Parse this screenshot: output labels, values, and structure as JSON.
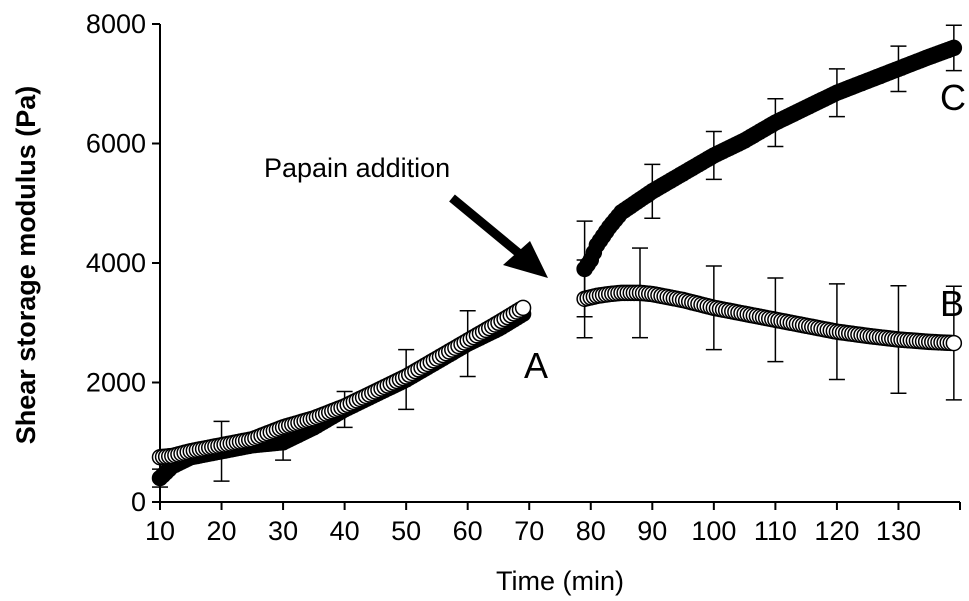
{
  "chart_data": {
    "type": "scatter",
    "title": "",
    "xlabel": "Time (min)",
    "ylabel": "Shear storage modulus  (Pa)",
    "xlim": [
      10,
      140
    ],
    "ylim": [
      0,
      8000
    ],
    "x_ticks": [
      10,
      20,
      30,
      40,
      50,
      60,
      70,
      80,
      90,
      100,
      110,
      120,
      130
    ],
    "y_ticks": [
      0,
      2000,
      4000,
      6000,
      8000
    ],
    "grid": false,
    "legend": "none",
    "series": [
      {
        "label": "A",
        "marker": "filled",
        "color": "#000000",
        "x": [
          10,
          12,
          15,
          20,
          25,
          30,
          35,
          40,
          45,
          50,
          55,
          60,
          65,
          69
        ],
        "y": [
          400,
          600,
          750,
          850,
          950,
          1000,
          1250,
          1550,
          1800,
          2050,
          2350,
          2650,
          2900,
          3150
        ],
        "err": [
          150,
          null,
          null,
          500,
          null,
          300,
          null,
          300,
          null,
          500,
          null,
          550,
          null,
          null
        ]
      },
      {
        "label": "A",
        "marker": "open",
        "color": "#000000",
        "x": [
          10,
          12,
          15,
          20,
          25,
          30,
          35,
          40,
          45,
          50,
          55,
          60,
          65,
          69
        ],
        "y": [
          750,
          770,
          850,
          950,
          1050,
          1250,
          1400,
          1600,
          1850,
          2100,
          2400,
          2700,
          3000,
          3250
        ],
        "err": [
          null,
          null,
          null,
          null,
          null,
          null,
          null,
          null,
          null,
          null,
          null,
          null,
          null,
          null
        ]
      },
      {
        "label": "C",
        "marker": "filled",
        "color": "#000000",
        "x": [
          79,
          80,
          81,
          83,
          85,
          90,
          95,
          100,
          105,
          110,
          115,
          120,
          125,
          130,
          135,
          139
        ],
        "y": [
          3900,
          4050,
          4300,
          4600,
          4850,
          5200,
          5500,
          5800,
          6050,
          6350,
          6600,
          6850,
          7050,
          7250,
          7450,
          7600
        ],
        "err": [
          800,
          null,
          null,
          null,
          null,
          450,
          null,
          400,
          null,
          400,
          null,
          400,
          null,
          380,
          null,
          380
        ]
      },
      {
        "label": "B",
        "marker": "open",
        "color": "#000000",
        "x": [
          79,
          81,
          83,
          85,
          88,
          90,
          95,
          100,
          105,
          110,
          115,
          120,
          125,
          130,
          135,
          139
        ],
        "y": [
          3400,
          3450,
          3480,
          3500,
          3500,
          3480,
          3380,
          3250,
          3150,
          3050,
          2950,
          2850,
          2780,
          2720,
          2680,
          2660
        ],
        "err": [
          650,
          null,
          null,
          null,
          750,
          null,
          null,
          700,
          null,
          700,
          null,
          800,
          null,
          900,
          null,
          950
        ]
      }
    ],
    "annotations": {
      "papain_text": "Papain addition",
      "label_A": "A",
      "label_B": "B",
      "label_C": "C"
    }
  }
}
